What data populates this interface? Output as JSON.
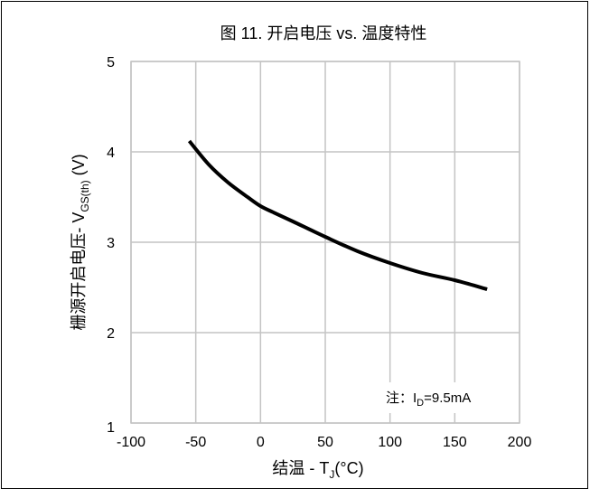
{
  "chart_data": {
    "type": "line",
    "title": "图 11. 开启电压 vs. 温度特性",
    "xlabel": {
      "main": "结温 - T",
      "sub": "J",
      "tail": "(°C)"
    },
    "ylabel": {
      "main": "栅源开启电压- V",
      "sub": "GS(th)",
      "tail": " (V)"
    },
    "xlim": [
      -100,
      200
    ],
    "ylim": [
      1,
      5
    ],
    "xticks": [
      -100,
      -50,
      0,
      50,
      100,
      150,
      200
    ],
    "yticks": [
      1,
      2,
      3,
      4,
      5
    ],
    "grid": true,
    "annotation": {
      "prefix": "注：I",
      "sub": "D",
      "tail": "=9.5mA"
    },
    "series": [
      {
        "color": "#000000",
        "x": [
          -55,
          -40,
          -25,
          -10,
          0,
          10,
          25,
          50,
          75,
          100,
          125,
          150,
          175
        ],
        "y": [
          4.12,
          3.86,
          3.66,
          3.5,
          3.4,
          3.33,
          3.23,
          3.06,
          2.9,
          2.77,
          2.66,
          2.58,
          2.48
        ]
      }
    ]
  }
}
